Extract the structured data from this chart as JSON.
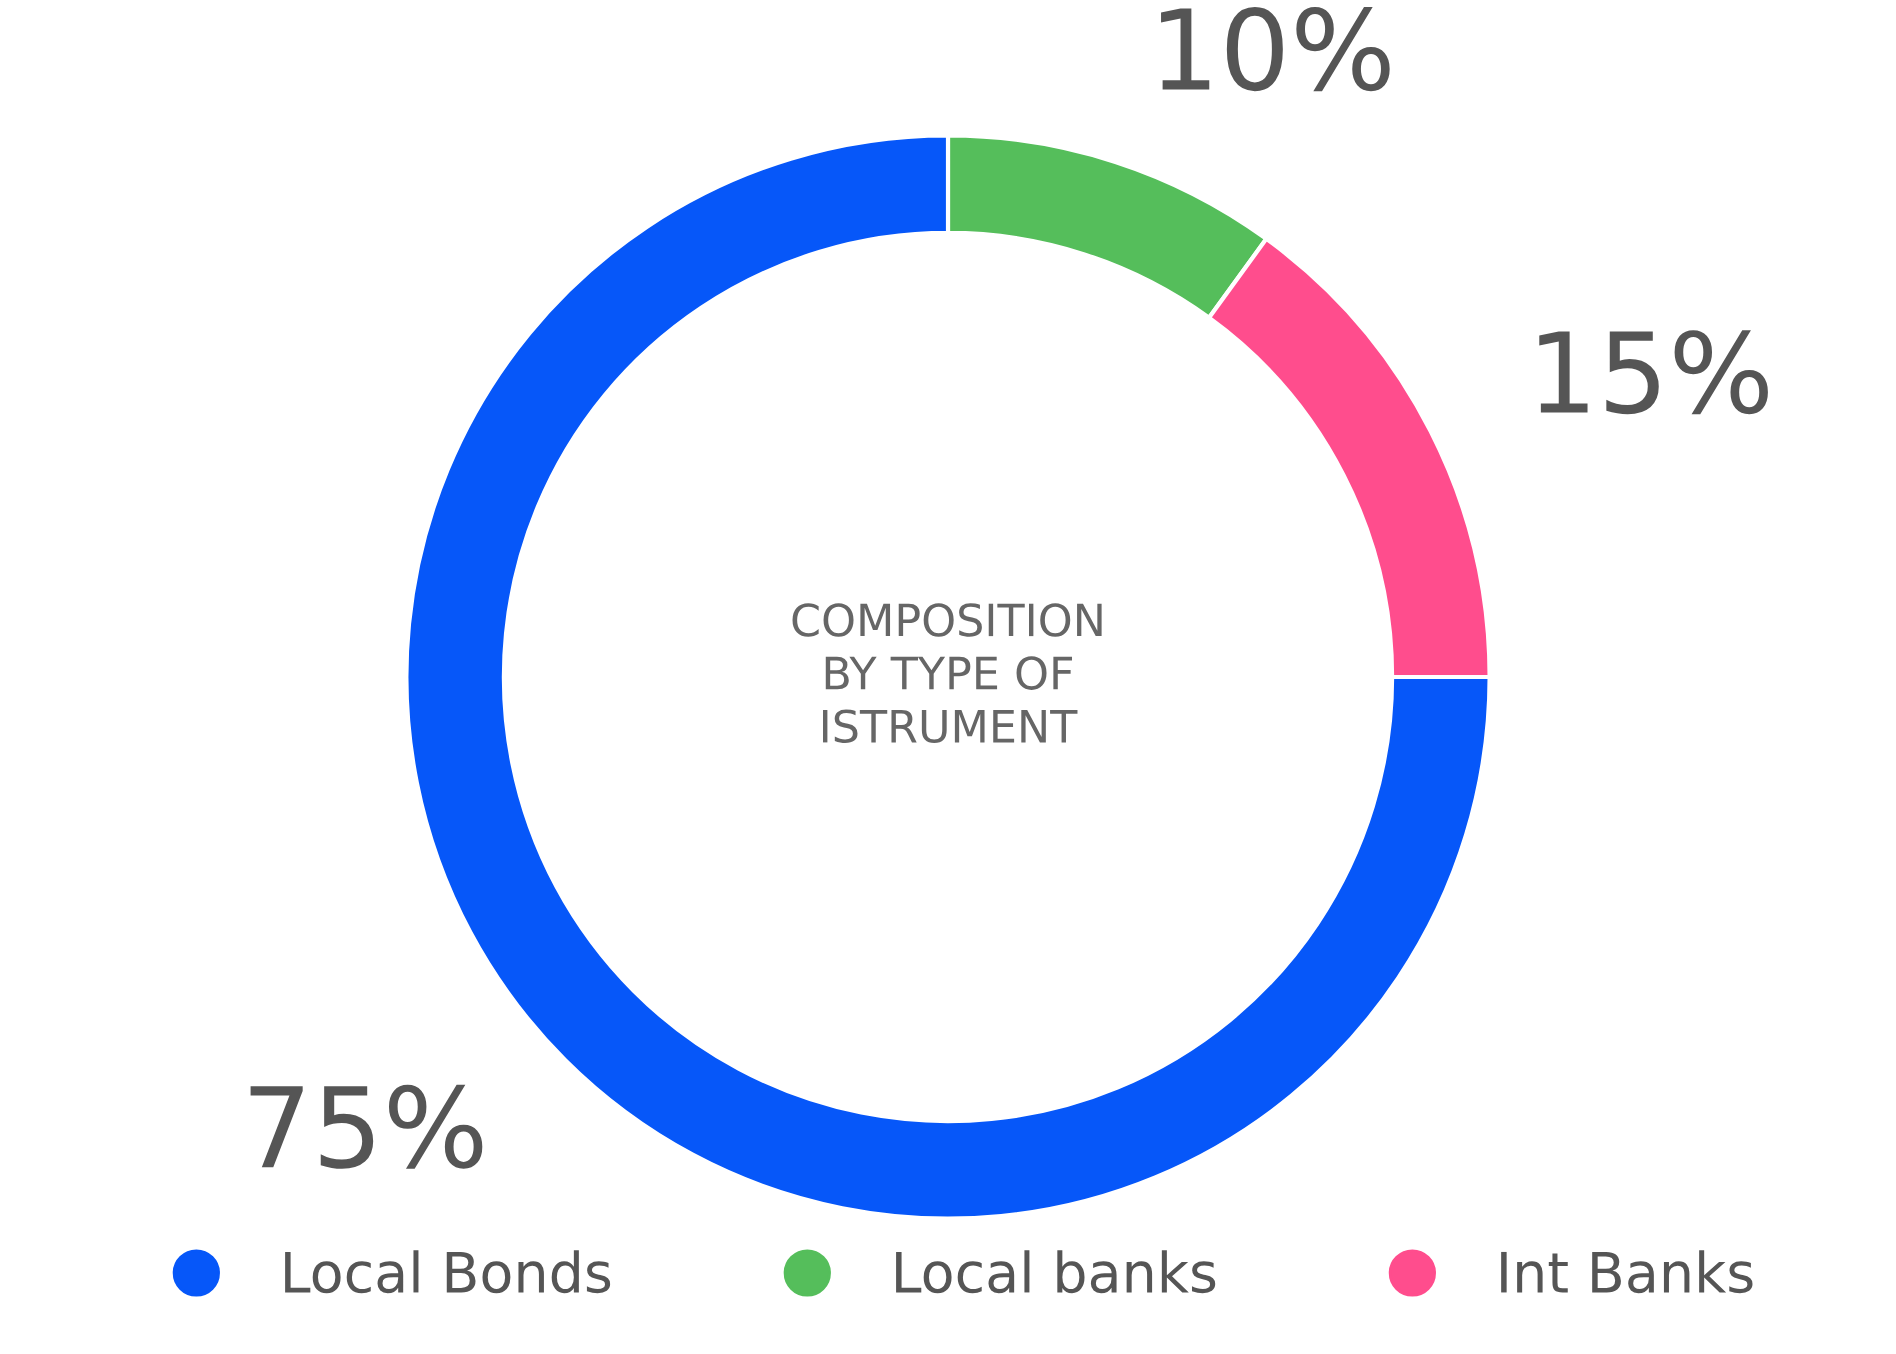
{
  "chart_data": {
    "type": "donut",
    "title": "COMPOSITION\nBY TYPE OF\nISTRUMENT",
    "categories": [
      "Local Bonds",
      "Local banks",
      "Int Banks"
    ],
    "values": [
      75,
      10,
      15
    ],
    "colors": [
      "#0657f9",
      "#55be5b",
      "#ff4d8d"
    ],
    "value_labels": [
      "75%",
      "10%",
      "15%"
    ],
    "legend": "bottom"
  }
}
